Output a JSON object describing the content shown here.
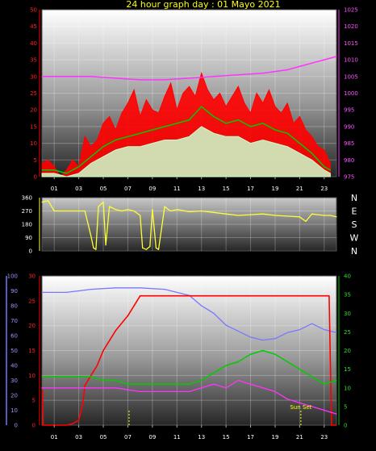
{
  "title": "24 hour graph day : 01 Mayo 2021",
  "x_ticks": [
    "01",
    "03",
    "05",
    "07",
    "09",
    "11",
    "13",
    "15",
    "17",
    "19",
    "21",
    "23"
  ],
  "colors": {
    "wind": "#ff0000",
    "gust_avg": "#00cc00",
    "wind_avg": "#ccffcc",
    "pressure": "#ff33ff",
    "direction": "#ffff33",
    "humidity": "#7777ff",
    "solar": "#ff0000",
    "temperature": "#00cc00",
    "dewpoint": "#ff33ff",
    "sunset": "#ffff00"
  },
  "chart_data": [
    {
      "type": "line",
      "name": "wind_pressure",
      "yleft": {
        "min": 0,
        "max": 50,
        "ticks": [
          0,
          5,
          10,
          15,
          20,
          25,
          30,
          35,
          40,
          45,
          50
        ]
      },
      "yright": {
        "min": 975,
        "max": 1025,
        "ticks": [
          975,
          980,
          985,
          990,
          995,
          1000,
          1005,
          1010,
          1015,
          1020,
          1025
        ]
      },
      "series": [
        {
          "key": "wind_gust",
          "axis": "left",
          "color_key": "wind",
          "x": [
            0,
            0.5,
            1,
            1.5,
            2,
            2.5,
            3,
            3.5,
            4,
            4.5,
            5,
            5.5,
            6,
            6.5,
            7,
            7.5,
            8,
            8.5,
            9,
            9.5,
            10,
            10.5,
            11,
            11.5,
            12,
            12.5,
            13,
            13.5,
            14,
            14.5,
            15,
            15.5,
            16,
            16.5,
            17,
            17.5,
            18,
            18.5,
            19,
            19.5,
            20,
            20.5,
            21,
            21.5,
            22,
            22.5,
            23,
            23.5
          ],
          "values": [
            4,
            5,
            3,
            0,
            2,
            5,
            3,
            12,
            9,
            11,
            16,
            18,
            14,
            19,
            22,
            26,
            18,
            23,
            20,
            19,
            24,
            28,
            20,
            25,
            27,
            24,
            31,
            26,
            23,
            25,
            21,
            24,
            27,
            22,
            19,
            25,
            22,
            26,
            21,
            19,
            22,
            16,
            18,
            14,
            12,
            9,
            8,
            4
          ]
        },
        {
          "key": "gust_avg",
          "axis": "left",
          "color_key": "gust_avg",
          "x": [
            0,
            1,
            2,
            3,
            4,
            5,
            6,
            7,
            8,
            9,
            10,
            11,
            12,
            13,
            14,
            15,
            16,
            17,
            18,
            19,
            20,
            21,
            22,
            23,
            23.5
          ],
          "values": [
            2,
            2,
            1,
            3,
            6,
            9,
            11,
            12,
            13,
            14,
            15,
            16,
            17,
            21,
            18,
            16,
            17,
            15,
            16,
            14,
            13,
            10,
            7,
            3,
            2
          ]
        },
        {
          "key": "wind_avg",
          "axis": "left",
          "color_key": "wind_avg",
          "x": [
            0,
            1,
            2,
            3,
            4,
            5,
            6,
            7,
            8,
            9,
            10,
            11,
            12,
            13,
            14,
            15,
            16,
            17,
            18,
            19,
            20,
            21,
            22,
            23,
            23.5
          ],
          "values": [
            1,
            1,
            0,
            1,
            4,
            6,
            8,
            9,
            9,
            10,
            11,
            11,
            12,
            15,
            13,
            12,
            12,
            10,
            11,
            10,
            9,
            7,
            5,
            2,
            1
          ]
        },
        {
          "key": "pressure",
          "axis": "right",
          "color_key": "pressure",
          "x": [
            0,
            2,
            4,
            6,
            8,
            10,
            12,
            14,
            16,
            18,
            20,
            22,
            23,
            24
          ],
          "values": [
            1005,
            1005,
            1005,
            1004.5,
            1004,
            1004,
            1004.5,
            1005,
            1005.5,
            1006,
            1007,
            1009,
            1010,
            1011
          ]
        }
      ]
    },
    {
      "type": "line",
      "name": "wind_direction",
      "yleft": {
        "min": 0,
        "max": 360,
        "ticks": [
          0,
          90,
          180,
          270,
          360
        ]
      },
      "compass": [
        "N",
        "W",
        "S",
        "E",
        "N"
      ],
      "series": [
        {
          "key": "direction",
          "color_key": "direction",
          "x": [
            0,
            0.5,
            1,
            1.5,
            2,
            2.5,
            3,
            3.5,
            4,
            4.2,
            4.4,
            4.6,
            5,
            5.2,
            5.5,
            6,
            6.5,
            7,
            7.5,
            8,
            8.2,
            8.5,
            8.8,
            9,
            9.3,
            9.5,
            10,
            10.3,
            10.5,
            11,
            12,
            13,
            14,
            15,
            16,
            17,
            18,
            19,
            20,
            21,
            21.5,
            22,
            22.5,
            23,
            23.5,
            24
          ],
          "values": [
            330,
            340,
            270,
            270,
            270,
            270,
            270,
            270,
            100,
            20,
            10,
            300,
            330,
            40,
            300,
            280,
            270,
            280,
            270,
            240,
            20,
            10,
            30,
            280,
            20,
            10,
            300,
            280,
            270,
            280,
            265,
            270,
            260,
            250,
            240,
            245,
            250,
            240,
            235,
            230,
            200,
            250,
            245,
            240,
            240,
            230
          ]
        }
      ]
    },
    {
      "type": "line",
      "name": "humidity_solar_temperature",
      "yleft_outer": {
        "min": 0,
        "max": 100,
        "ticks": [
          0,
          10,
          20,
          30,
          40,
          50,
          60,
          70,
          80,
          90,
          100
        ]
      },
      "yleft_inner": {
        "min": 0,
        "max": 30,
        "ticks": [
          0,
          5,
          10,
          15,
          20,
          25,
          30
        ]
      },
      "yright": {
        "min": 0,
        "max": 40,
        "ticks": [
          0,
          5,
          10,
          15,
          20,
          25,
          30,
          35,
          40
        ]
      },
      "series": [
        {
          "key": "humidity",
          "axis": "outer",
          "color_key": "humidity",
          "x": [
            0,
            2,
            4,
            6,
            8,
            10,
            12,
            13,
            14,
            15,
            16,
            17,
            18,
            19,
            20,
            21,
            22,
            23,
            24
          ],
          "values": [
            89,
            89,
            91,
            92,
            92,
            91,
            87,
            80,
            75,
            67,
            63,
            59,
            57,
            58,
            62,
            64,
            68,
            64,
            62
          ]
        },
        {
          "key": "solar",
          "axis": "inner",
          "color_key": "solar",
          "x": [
            0,
            0.05,
            0.1,
            1,
            2,
            2.5,
            3,
            3.3,
            3.5,
            4,
            4.5,
            5,
            6,
            7,
            8,
            23.4,
            23.6,
            24
          ],
          "values": [
            7,
            7,
            0,
            0,
            0,
            0.3,
            1,
            4,
            8,
            10,
            12,
            15,
            19,
            22,
            26,
            26,
            0,
            0
          ]
        },
        {
          "key": "temperature",
          "axis": "right",
          "color_key": "temperature",
          "x": [
            0,
            2,
            4,
            5,
            6,
            7,
            8,
            10,
            12,
            13,
            14,
            15,
            16,
            17,
            18,
            19,
            20,
            21,
            22,
            23,
            24
          ],
          "values": [
            13,
            13,
            13,
            12,
            12,
            11,
            11,
            11,
            11,
            12,
            14,
            16,
            17,
            19,
            20,
            19,
            17,
            15,
            13,
            11,
            12
          ]
        },
        {
          "key": "dewpoint",
          "axis": "right",
          "color_key": "dewpoint",
          "x": [
            0,
            2,
            4,
            6,
            8,
            10,
            12,
            13,
            14,
            15,
            16,
            17,
            18,
            19,
            20,
            21,
            22,
            23,
            24
          ],
          "values": [
            10,
            10,
            10,
            10,
            9,
            9,
            9,
            10,
            11,
            10,
            12,
            11,
            10,
            9,
            7,
            6,
            5,
            4,
            3
          ]
        }
      ],
      "markers": [
        {
          "key": "sun_rise_line",
          "x": 7.1,
          "color_key": "sunset"
        },
        {
          "key": "sun_set_line",
          "x": 21.1,
          "label": "Sun Set",
          "color_key": "sunset"
        }
      ]
    }
  ]
}
